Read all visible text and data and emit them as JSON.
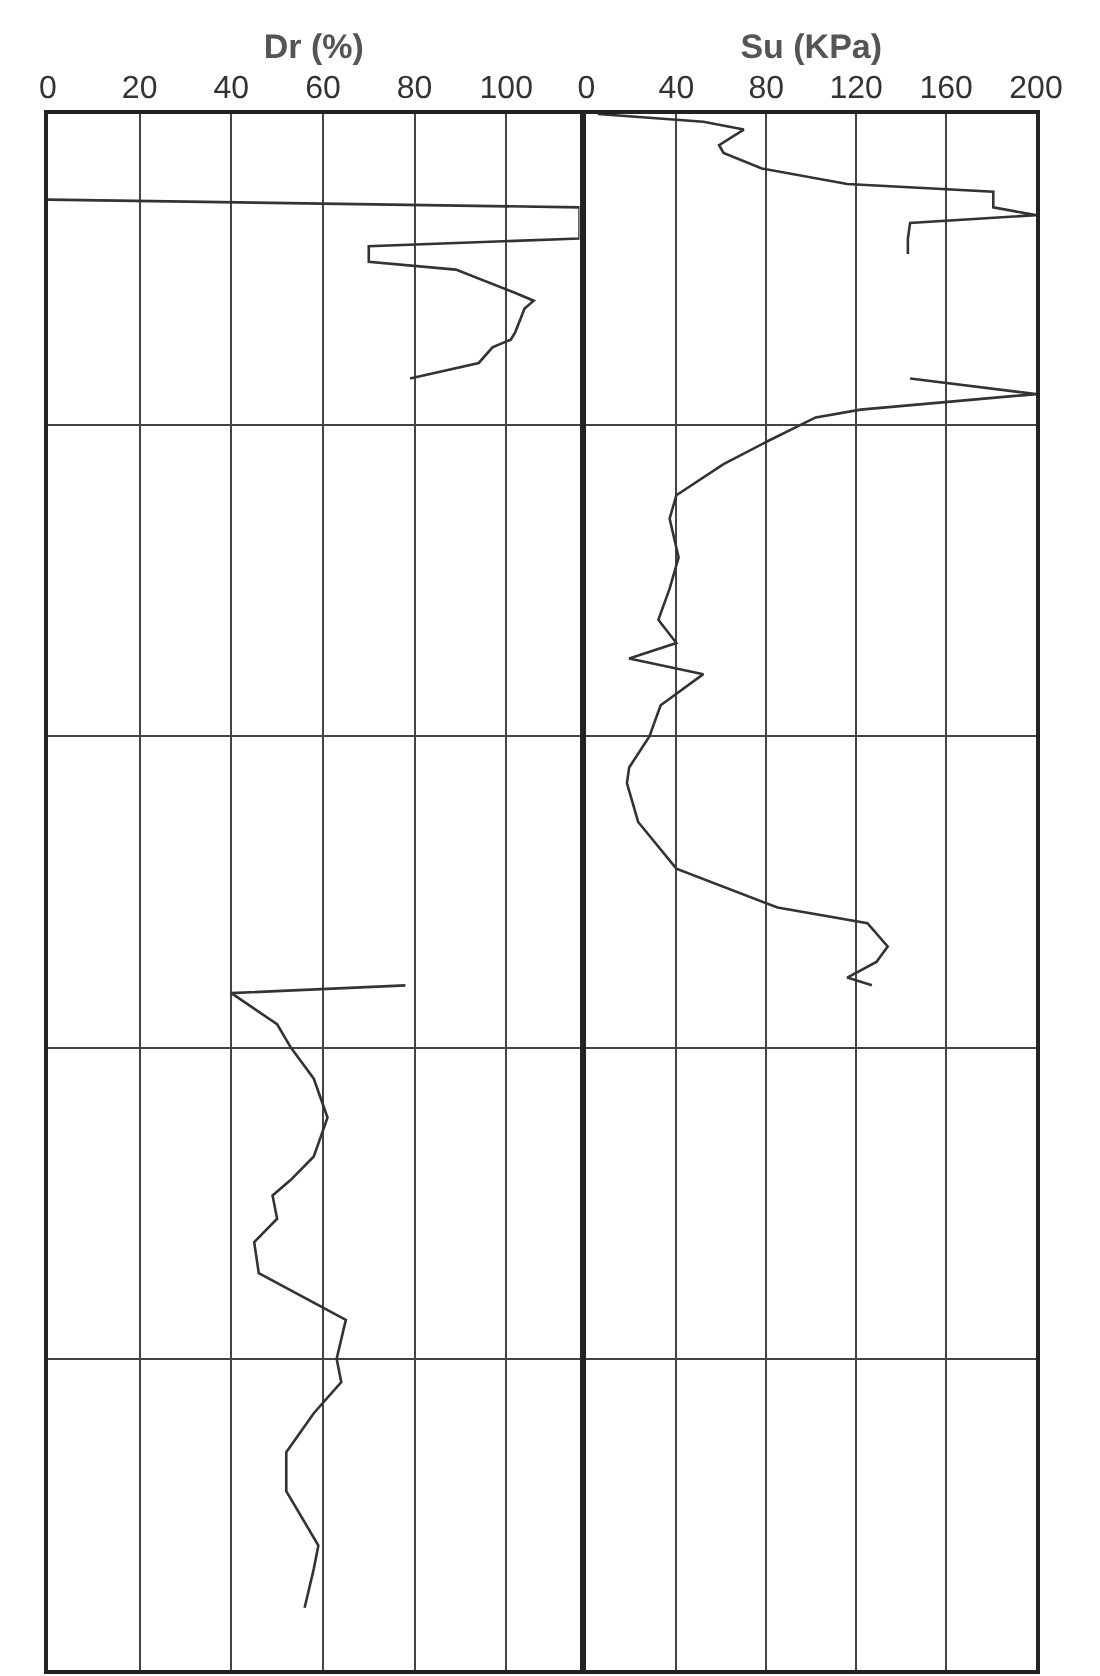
{
  "chart_data": [
    {
      "type": "line",
      "orientation": "horizontal",
      "xlabel": "Dr (%)",
      "xlim": [
        0,
        116
      ],
      "xticks": [
        0,
        20,
        40,
        60,
        80,
        100
      ],
      "grid": true,
      "tick_labels": "x",
      "categories": [
        null,
        null,
        null,
        null,
        null,
        null,
        null,
        null,
        null,
        null,
        null,
        null,
        null,
        null,
        null,
        null,
        null,
        null,
        null,
        null,
        null,
        null,
        null,
        null,
        null,
        null,
        null,
        null,
        null,
        null,
        null,
        null,
        null,
        null,
        null,
        null,
        null,
        null,
        null,
        null,
        null,
        null,
        null,
        null,
        null,
        null,
        null,
        null,
        null,
        null,
        null,
        null,
        null,
        null,
        null,
        null,
        null,
        null,
        null,
        null,
        null,
        null,
        null,
        null,
        null,
        null,
        null,
        null,
        null,
        null,
        null,
        null,
        null,
        null,
        null,
        null,
        null,
        null,
        null,
        null,
        null,
        null,
        null,
        null,
        null,
        null,
        null,
        null,
        null,
        null,
        null,
        null,
        null,
        null,
        null,
        null,
        null,
        null,
        null,
        null,
        null,
        null,
        null,
        null,
        null,
        null,
        null,
        null,
        null,
        null,
        null,
        null,
        null,
        null,
        null,
        null,
        null,
        null,
        null,
        null,
        null,
        null,
        null,
        null,
        null,
        null,
        null,
        null,
        null,
        null,
        null,
        null,
        null,
        null,
        null,
        null,
        null,
        null,
        null,
        null,
        null,
        null,
        null,
        null,
        null,
        null,
        null,
        null,
        null,
        null,
        null,
        null,
        null,
        null,
        null,
        null,
        null,
        null,
        null,
        null,
        null,
        null,
        null,
        null,
        null,
        null,
        null,
        null,
        null,
        null,
        null,
        null,
        null,
        null,
        null,
        null,
        null,
        null,
        null,
        null,
        null,
        null,
        null,
        null,
        null,
        null,
        null,
        null,
        null,
        null,
        null,
        null,
        null,
        null,
        null,
        null,
        null,
        null,
        null,
        null,
        null
      ],
      "series": [
        {
          "color": "#333333",
          "values": [
            null,
            null,
            null,
            null,
            null,
            null,
            null,
            null,
            null,
            null,
            null,
            0,
            116,
            null,
            null,
            null,
            116,
            70,
            null,
            70,
            89,
            null,
            null,
            102,
            106,
            104,
            null,
            null,
            102,
            101,
            97,
            null,
            94,
            null,
            79,
            null,
            null,
            null,
            null,
            null,
            null,
            null,
            null,
            null,
            null,
            null,
            null,
            null,
            null,
            null,
            null,
            null,
            null,
            null,
            null,
            null,
            null,
            null,
            null,
            null,
            null,
            null,
            null,
            null,
            null,
            null,
            null,
            null,
            null,
            null,
            null,
            null,
            null,
            null,
            null,
            null,
            null,
            null,
            null,
            null,
            null,
            null,
            null,
            null,
            null,
            null,
            null,
            null,
            null,
            null,
            null,
            null,
            null,
            null,
            null,
            null,
            null,
            null,
            null,
            null,
            null,
            null,
            null,
            null,
            null,
            null,
            null,
            null,
            null,
            null,
            null,
            null,
            null,
            null,
            null,
            null,
            null,
            null,
            null,
            null,
            null,
            null,
            null,
            null,
            null,
            null,
            null,
            null,
            null,
            null,
            null,
            null,
            null,
            null,
            null,
            null,
            null,
            null,
            null,
            null,
            null,
            null,
            null,
            null,
            null,
            null,
            null,
            null,
            null,
            null,
            null,
            null,
            null,
            null,
            null,
            null,
            null,
            null,
            null,
            null,
            null,
            null,
            null,
            null,
            null,
            null,
            null,
            null,
            null,
            null,
            null,
            null,
            null,
            null,
            null,
            null,
            null,
            null,
            null,
            null,
            null,
            null,
            null,
            null,
            null,
            null,
            null,
            null,
            null,
            null,
            null,
            null,
            null,
            null,
            null,
            null,
            null,
            null,
            null,
            null,
            null
          ]
        },
        {
          "color": "#333333",
          "values": [
            null,
            null,
            null,
            null,
            null,
            null,
            null,
            null,
            null,
            null,
            null,
            null,
            null,
            null,
            null,
            null,
            null,
            null,
            null,
            null,
            null,
            null,
            null,
            null,
            null,
            null,
            null,
            null,
            null,
            null,
            null,
            null,
            null,
            null,
            null,
            null,
            null,
            null,
            null,
            null,
            null,
            null,
            null,
            null,
            null,
            null,
            null,
            null,
            null,
            null,
            null,
            null,
            null,
            null,
            null,
            null,
            null,
            null,
            null,
            null,
            null,
            null,
            null,
            null,
            null,
            null,
            null,
            null,
            null,
            null,
            null,
            null,
            null,
            null,
            null,
            null,
            null,
            null,
            null,
            null,
            null,
            null,
            null,
            null,
            null,
            null,
            null,
            null,
            null,
            null,
            null,
            null,
            null,
            null,
            null,
            null,
            null,
            null,
            null,
            null,
            null,
            null,
            null,
            null,
            null,
            null,
            null,
            null,
            null,
            null,
            null,
            null,
            78,
            40,
            null,
            null,
            null,
            50,
            null,
            null,
            53,
            null,
            null,
            null,
            58,
            null,
            null,
            null,
            null,
            61,
            null,
            null,
            null,
            null,
            58,
            null,
            null,
            53,
            null,
            49,
            null,
            null,
            50,
            null,
            null,
            45,
            null,
            null,
            null,
            46,
            null,
            null,
            null,
            null,
            null,
            65,
            null,
            null,
            null,
            null,
            63,
            null,
            null,
            64,
            null,
            null,
            null,
            58,
            null,
            null,
            null,
            null,
            52,
            null,
            null,
            null,
            null,
            52,
            null,
            null,
            null,
            null,
            null,
            null,
            59,
            null,
            null,
            58,
            null,
            null,
            null,
            null,
            56,
            null,
            null,
            null,
            null,
            null,
            null,
            null,
            null
          ]
        }
      ]
    },
    {
      "type": "line",
      "orientation": "horizontal",
      "xlabel": "Su (KPa)",
      "xlim": [
        0,
        200
      ],
      "xticks": [
        0,
        40,
        80,
        120,
        160,
        200
      ],
      "grid": true,
      "tick_labels": "x",
      "categories": [
        null,
        null,
        null,
        null,
        null,
        null,
        null,
        null,
        null,
        null,
        null,
        null,
        null,
        null,
        null,
        null,
        null,
        null,
        null,
        null,
        null,
        null,
        null,
        null,
        null,
        null,
        null,
        null,
        null,
        null,
        null,
        null,
        null,
        null,
        null,
        null,
        null,
        null,
        null,
        null,
        null,
        null,
        null,
        null,
        null,
        null,
        null,
        null,
        null,
        null,
        null,
        null,
        null,
        null,
        null,
        null,
        null,
        null,
        null,
        null,
        null,
        null,
        null,
        null,
        null,
        null,
        null,
        null,
        null,
        null,
        null,
        null,
        null,
        null,
        null,
        null,
        null,
        null,
        null,
        null,
        null,
        null,
        null,
        null,
        null,
        null,
        null,
        null,
        null,
        null,
        null,
        null,
        null,
        null,
        null,
        null,
        null,
        null,
        null,
        null,
        null,
        null,
        null,
        null,
        null,
        null,
        null,
        null,
        null,
        null,
        null,
        null,
        null,
        null,
        null,
        null,
        null,
        null,
        null,
        null,
        null,
        null,
        null,
        null,
        null,
        null,
        null,
        null,
        null,
        null,
        null,
        null,
        null,
        null,
        null,
        null,
        null,
        null,
        null,
        null,
        null,
        null,
        null,
        null,
        null,
        null,
        null,
        null,
        null,
        null,
        null,
        null,
        null,
        null,
        null,
        null,
        null,
        null,
        null,
        null,
        null,
        null,
        null,
        null,
        null,
        null,
        null,
        null,
        null,
        null,
        null,
        null,
        null,
        null,
        null,
        null,
        null,
        null,
        null,
        null,
        null,
        null,
        null,
        null,
        null,
        null,
        null,
        null,
        null,
        null,
        null,
        null,
        null,
        null,
        null,
        null,
        null,
        null,
        null,
        null,
        null
      ],
      "series": [
        {
          "color": "#333333",
          "values": [
            5,
            52,
            70,
            null,
            59,
            61,
            null,
            78,
            null,
            116,
            181,
            null,
            181,
            200,
            144,
            null,
            143,
            null,
            143,
            null,
            null,
            null,
            null,
            null,
            null,
            null,
            null,
            null,
            null,
            null,
            null,
            null,
            null,
            null,
            null,
            null,
            null,
            null,
            null,
            null,
            null,
            null,
            null,
            null,
            null,
            null,
            null,
            null,
            null,
            null,
            null,
            null,
            null,
            null,
            null,
            null,
            null,
            null,
            null,
            null,
            null,
            null,
            null,
            null,
            null,
            null,
            null,
            null,
            null,
            null,
            null,
            null,
            null,
            null,
            null,
            null,
            null,
            null,
            null,
            null,
            null,
            null,
            null,
            null,
            null,
            null,
            null,
            null,
            null,
            null,
            null,
            null,
            null,
            null,
            null,
            null,
            null,
            null,
            null,
            null,
            null,
            null,
            null,
            null,
            null,
            null,
            null,
            null,
            null,
            null,
            null,
            null,
            null,
            null,
            null,
            null,
            null,
            null,
            null,
            null,
            null,
            null,
            null,
            null,
            null,
            null,
            null,
            null,
            null,
            null,
            null,
            null,
            null,
            null,
            null,
            null,
            null,
            null,
            null,
            null,
            null,
            null,
            null,
            null,
            null,
            null,
            null,
            null,
            null,
            null,
            null,
            null,
            null,
            null,
            null,
            null,
            null,
            null,
            null,
            null,
            null,
            null,
            null,
            null,
            null,
            null,
            null,
            null,
            null,
            null,
            null,
            null,
            null,
            null,
            null,
            null,
            null,
            null,
            null,
            null,
            null,
            null,
            null,
            null,
            null,
            null,
            null,
            null,
            null,
            null,
            null,
            null,
            null,
            null,
            null,
            null,
            null,
            null,
            null,
            null,
            null
          ]
        },
        {
          "color": "#333333",
          "values": [
            null,
            null,
            null,
            null,
            null,
            null,
            null,
            null,
            null,
            null,
            null,
            null,
            null,
            null,
            null,
            null,
            null,
            null,
            null,
            null,
            null,
            null,
            null,
            null,
            null,
            null,
            null,
            null,
            null,
            null,
            null,
            null,
            null,
            null,
            144,
            null,
            200,
            null,
            122,
            102,
            null,
            null,
            81,
            null,
            null,
            61,
            null,
            null,
            null,
            40,
            null,
            null,
            37,
            null,
            null,
            null,
            null,
            41,
            null,
            null,
            null,
            37,
            null,
            null,
            null,
            32,
            null,
            null,
            40,
            null,
            19,
            null,
            52,
            null,
            null,
            null,
            33,
            null,
            null,
            null,
            28,
            null,
            null,
            null,
            19,
            null,
            18,
            null,
            null,
            null,
            null,
            23,
            null,
            null,
            null,
            null,
            null,
            40,
            null,
            null,
            null,
            null,
            85,
            null,
            125,
            null,
            null,
            134,
            null,
            129,
            null,
            116,
            127,
            null,
            null,
            null,
            null,
            null,
            null,
            null,
            null,
            null,
            null,
            null,
            null,
            null,
            null,
            null,
            null,
            null,
            null,
            null,
            null,
            null,
            null,
            null,
            null,
            null,
            null,
            null,
            null,
            null,
            null,
            null,
            null,
            null,
            null,
            null,
            null,
            null,
            null,
            null,
            null,
            null,
            null,
            null,
            null,
            null,
            null,
            null,
            null,
            null,
            null,
            null,
            null,
            null,
            null,
            null,
            null,
            null,
            null,
            null,
            null,
            null,
            null,
            null,
            null,
            null,
            null,
            null,
            null,
            null,
            null,
            null,
            null,
            null,
            null,
            null,
            null,
            null,
            null,
            null,
            null,
            null,
            null,
            null,
            null,
            null,
            null,
            null,
            null
          ]
        }
      ]
    }
  ]
}
